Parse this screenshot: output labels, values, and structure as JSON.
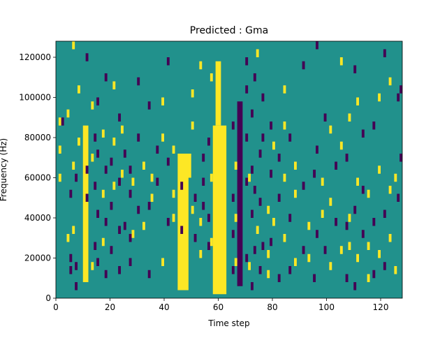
{
  "chart_data": {
    "type": "heatmap",
    "title": "Predicted : Gma",
    "xlabel": "Time step",
    "ylabel": "Frequency (Hz)",
    "xlim": [
      0,
      128
    ],
    "ylim": [
      0,
      128000
    ],
    "x_ticks": [
      0,
      20,
      40,
      60,
      80,
      100,
      120
    ],
    "x_tick_labels": [
      "0",
      "20",
      "40",
      "60",
      "80",
      "100",
      "120"
    ],
    "y_ticks": [
      0,
      20000,
      40000,
      60000,
      80000,
      100000,
      120000
    ],
    "y_tick_labels": [
      "0",
      "20000",
      "40000",
      "60000",
      "80000",
      "100000",
      "120000"
    ],
    "grid": false,
    "colormap": "viridis",
    "colors": {
      "low": "#440154",
      "mid": "#21918c",
      "high": "#fde725"
    },
    "background_value": "mid",
    "bands": [
      {
        "x": [
          10,
          12
        ],
        "y": [
          8000,
          86000
        ],
        "value": "high"
      },
      {
        "x": [
          45,
          49
        ],
        "y": [
          4000,
          72000
        ],
        "value": "high"
      },
      {
        "x": [
          58,
          63
        ],
        "y": [
          2000,
          86000
        ],
        "value": "high"
      },
      {
        "x": [
          59,
          61
        ],
        "y": [
          86000,
          118000
        ],
        "value": "high"
      },
      {
        "x": [
          48,
          50
        ],
        "y": [
          60000,
          72000
        ],
        "value": "high"
      },
      {
        "x": [
          67,
          69
        ],
        "y": [
          6000,
          98000
        ],
        "value": "low"
      }
    ],
    "sparse_columns": [
      {
        "x": 1,
        "value": "high",
        "y": [
          60000,
          74000,
          88000
        ]
      },
      {
        "x": 2,
        "value": "low",
        "y": [
          88000
        ]
      },
      {
        "x": 4,
        "value": "high",
        "y": [
          30000,
          92000
        ]
      },
      {
        "x": 5,
        "value": "low",
        "y": [
          14000,
          20000,
          52000
        ]
      },
      {
        "x": 6,
        "value": "high",
        "y": [
          34000,
          66000,
          126000
        ]
      },
      {
        "x": 7,
        "value": "low",
        "y": [
          6000,
          16000,
          60000
        ]
      },
      {
        "x": 8,
        "value": "high",
        "y": [
          78000,
          104000
        ]
      },
      {
        "x": 11,
        "value": "low",
        "y": [
          50000,
          64000,
          120000
        ]
      },
      {
        "x": 13,
        "value": "high",
        "y": [
          16000,
          70000,
          96000
        ]
      },
      {
        "x": 14,
        "value": "low",
        "y": [
          26000,
          56000,
          80000
        ]
      },
      {
        "x": 15,
        "value": "low",
        "y": [
          18000,
          42000,
          72000,
          98000
        ]
      },
      {
        "x": 17,
        "value": "high",
        "y": [
          28000,
          52000,
          82000
        ]
      },
      {
        "x": 18,
        "value": "low",
        "y": [
          12000,
          38000,
          64000,
          110000
        ]
      },
      {
        "x": 20,
        "value": "low",
        "y": [
          24000,
          46000,
          68000
        ]
      },
      {
        "x": 21,
        "value": "high",
        "y": [
          56000,
          78000,
          106000
        ]
      },
      {
        "x": 23,
        "value": "low",
        "y": [
          14000,
          34000,
          58000,
          90000
        ]
      },
      {
        "x": 24,
        "value": "high",
        "y": [
          62000,
          84000
        ]
      },
      {
        "x": 25,
        "value": "low",
        "y": [
          36000,
          72000
        ]
      },
      {
        "x": 27,
        "value": "low",
        "y": [
          18000,
          30000,
          52000,
          64000
        ]
      },
      {
        "x": 28,
        "value": "high",
        "y": [
          32000,
          58000
        ]
      },
      {
        "x": 30,
        "value": "low",
        "y": [
          44000,
          80000,
          108000
        ]
      },
      {
        "x": 32,
        "value": "high",
        "y": [
          36000,
          66000
        ]
      },
      {
        "x": 34,
        "value": "low",
        "y": [
          12000,
          46000,
          96000
        ]
      },
      {
        "x": 35,
        "value": "high",
        "y": [
          50000,
          60000
        ]
      },
      {
        "x": 37,
        "value": "low",
        "y": [
          58000,
          74000
        ]
      },
      {
        "x": 39,
        "value": "high",
        "y": [
          18000,
          80000,
          98000
        ]
      },
      {
        "x": 41,
        "value": "low",
        "y": [
          38000,
          68000,
          118000
        ]
      },
      {
        "x": 43,
        "value": "high",
        "y": [
          40000,
          52000,
          74000
        ]
      },
      {
        "x": 46,
        "value": "low",
        "y": [
          34000,
          56000
        ]
      },
      {
        "x": 50,
        "value": "high",
        "y": [
          44000,
          86000,
          102000
        ]
      },
      {
        "x": 51,
        "value": "low",
        "y": [
          30000,
          50000
        ]
      },
      {
        "x": 53,
        "value": "high",
        "y": [
          22000,
          38000,
          116000
        ]
      },
      {
        "x": 54,
        "value": "low",
        "y": [
          46000,
          58000,
          70000
        ]
      },
      {
        "x": 56,
        "value": "low",
        "y": [
          26000,
          40000,
          78000
        ]
      },
      {
        "x": 57,
        "value": "high",
        "y": [
          28000,
          60000,
          110000
        ]
      },
      {
        "x": 65,
        "value": "low",
        "y": [
          14000,
          32000,
          50000,
          86000
        ]
      },
      {
        "x": 66,
        "value": "high",
        "y": [
          18000,
          40000,
          66000
        ]
      },
      {
        "x": 70,
        "value": "low",
        "y": [
          20000,
          58000,
          80000,
          104000,
          118000
        ]
      },
      {
        "x": 71,
        "value": "high",
        "y": [
          16000,
          60000
        ]
      },
      {
        "x": 72,
        "value": "low",
        "y": [
          6000,
          42000,
          64000,
          92000
        ]
      },
      {
        "x": 73,
        "value": "low",
        "y": [
          24000,
          54000,
          110000
        ]
      },
      {
        "x": 74,
        "value": "high",
        "y": [
          34000,
          122000
        ]
      },
      {
        "x": 75,
        "value": "low",
        "y": [
          14000,
          48000,
          72000
        ]
      },
      {
        "x": 76,
        "value": "low",
        "y": [
          26000,
          80000,
          100000
        ]
      },
      {
        "x": 78,
        "value": "high",
        "y": [
          12000,
          22000,
          44000
        ]
      },
      {
        "x": 79,
        "value": "low",
        "y": [
          28000,
          62000,
          86000
        ]
      },
      {
        "x": 80,
        "value": "high",
        "y": [
          38000,
          76000
        ]
      },
      {
        "x": 82,
        "value": "low",
        "y": [
          10000,
          50000,
          70000
        ]
      },
      {
        "x": 84,
        "value": "high",
        "y": [
          30000,
          60000,
          86000,
          104000
        ]
      },
      {
        "x": 86,
        "value": "low",
        "y": [
          14000,
          40000,
          80000
        ]
      },
      {
        "x": 88,
        "value": "high",
        "y": [
          18000,
          52000,
          66000
        ]
      },
      {
        "x": 91,
        "value": "low",
        "y": [
          24000,
          56000,
          116000
        ]
      },
      {
        "x": 93,
        "value": "high",
        "y": [
          20000,
          36000
        ]
      },
      {
        "x": 95,
        "value": "low",
        "y": [
          10000,
          62000
        ]
      },
      {
        "x": 96,
        "value": "low",
        "y": [
          32000,
          74000,
          126000
        ]
      },
      {
        "x": 98,
        "value": "high",
        "y": [
          42000,
          58000
        ]
      },
      {
        "x": 99,
        "value": "low",
        "y": [
          24000,
          90000
        ]
      },
      {
        "x": 101,
        "value": "high",
        "y": [
          16000,
          48000,
          84000
        ]
      },
      {
        "x": 103,
        "value": "low",
        "y": [
          38000,
          66000
        ]
      },
      {
        "x": 105,
        "value": "high",
        "y": [
          24000,
          76000,
          118000
        ]
      },
      {
        "x": 107,
        "value": "low",
        "y": [
          10000,
          36000,
          70000
        ]
      },
      {
        "x": 108,
        "value": "high",
        "y": [
          26000,
          40000,
          90000
        ]
      },
      {
        "x": 110,
        "value": "low",
        "y": [
          6000,
          44000,
          114000
        ]
      },
      {
        "x": 111,
        "value": "high",
        "y": [
          20000,
          58000,
          98000
        ]
      },
      {
        "x": 113,
        "value": "low",
        "y": [
          32000,
          54000,
          82000
        ]
      },
      {
        "x": 115,
        "value": "high",
        "y": [
          10000,
          26000,
          52000
        ]
      },
      {
        "x": 117,
        "value": "low",
        "y": [
          12000,
          38000,
          86000
        ]
      },
      {
        "x": 119,
        "value": "high",
        "y": [
          22000,
          64000,
          100000
        ]
      },
      {
        "x": 121,
        "value": "low",
        "y": [
          16000,
          42000,
          122000
        ]
      },
      {
        "x": 123,
        "value": "high",
        "y": [
          30000,
          54000,
          108000
        ]
      },
      {
        "x": 125,
        "value": "high",
        "y": [
          14000,
          60000
        ]
      },
      {
        "x": 126,
        "value": "low",
        "y": [
          50000,
          100000
        ]
      },
      {
        "x": 127,
        "value": "low",
        "y": [
          70000,
          104000
        ]
      }
    ]
  }
}
